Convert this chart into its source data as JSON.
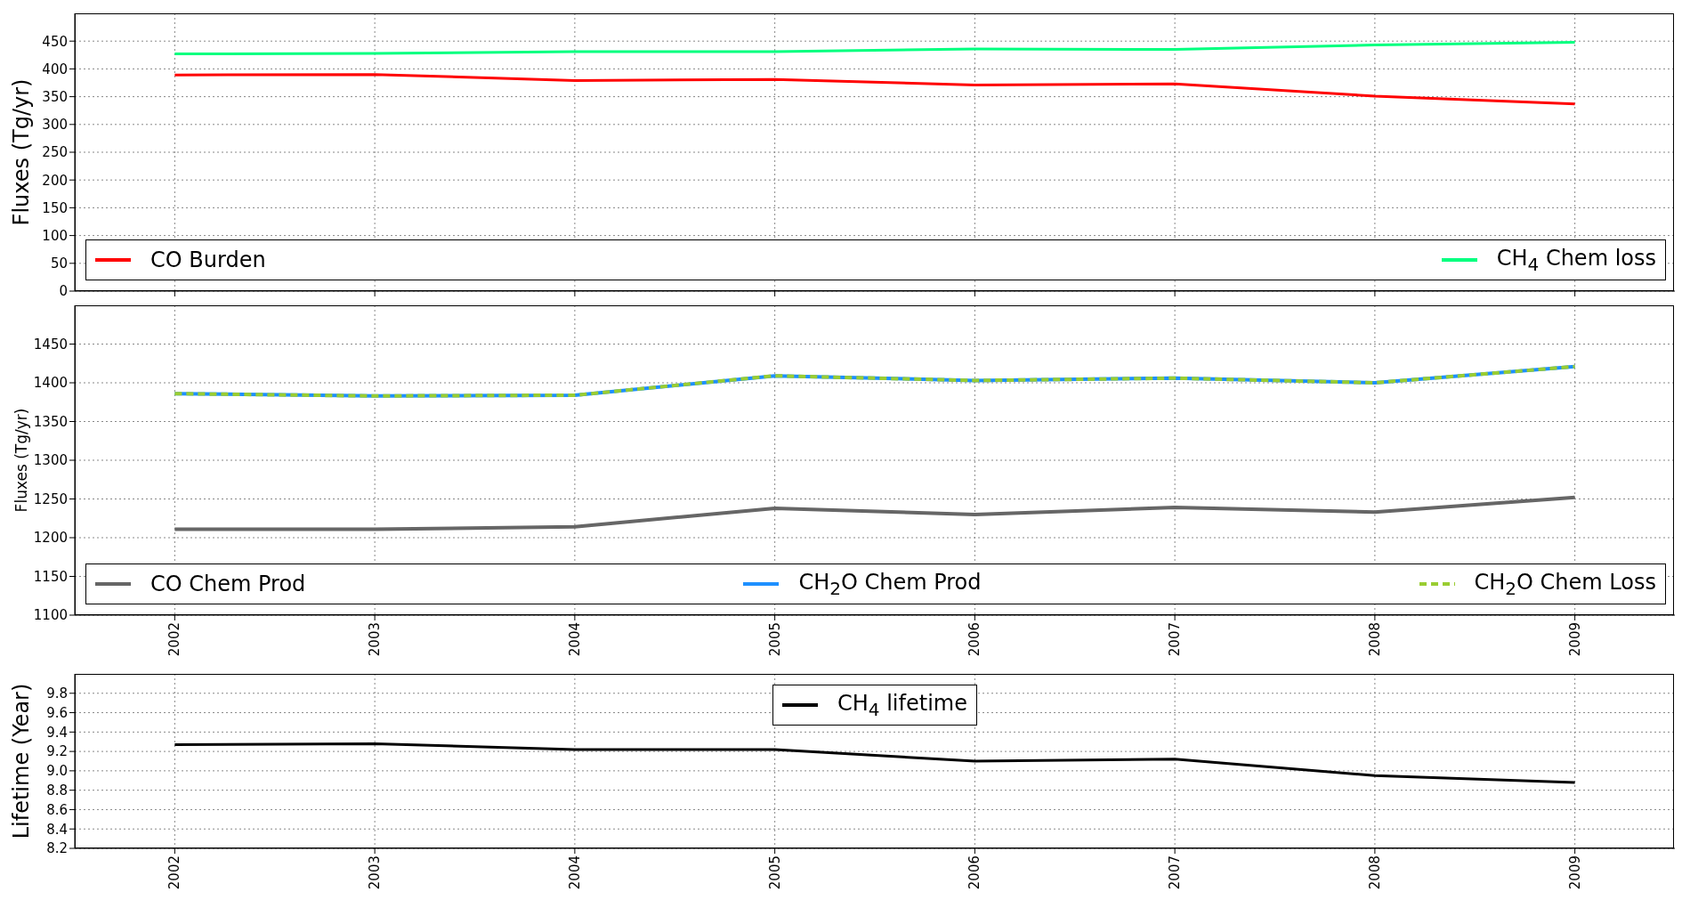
{
  "chart_data": [
    {
      "type": "line",
      "ylabel": "Fluxes (Tg/yr)",
      "x": [
        2002,
        2003,
        2004,
        2005,
        2006,
        2007,
        2008,
        2009
      ],
      "xlim": [
        2001.5,
        2009.5
      ],
      "xticks": [
        2002,
        2003,
        2004,
        2005,
        2006,
        2007,
        2008,
        2009
      ],
      "ylim": [
        0,
        500
      ],
      "yticks": [
        0,
        50,
        100,
        150,
        200,
        250,
        300,
        350,
        400,
        450
      ],
      "grid": true,
      "legend": "bottom",
      "tick_labels": "y",
      "marker": "none",
      "series": [
        {
          "name": "CO Burden",
          "color": "#ff0000",
          "values": [
            389,
            390,
            379,
            381,
            371,
            373,
            351,
            337
          ]
        },
        {
          "name": "CH$_{4}$ Chem loss",
          "color": "#00ff7f",
          "values": [
            427,
            428,
            431,
            431,
            436,
            435,
            443,
            448
          ]
        }
      ]
    },
    {
      "type": "line",
      "ylabel": "Fluxes (Tg/yr)",
      "x": [
        2002,
        2003,
        2004,
        2005,
        2006,
        2007,
        2008,
        2009
      ],
      "xlim": [
        2001.5,
        2009.5
      ],
      "xticks": [
        2002,
        2003,
        2004,
        2005,
        2006,
        2007,
        2008,
        2009
      ],
      "ylim": [
        1100,
        1500
      ],
      "yticks": [
        1100,
        1150,
        1200,
        1250,
        1300,
        1350,
        1400,
        1450
      ],
      "grid": true,
      "legend": "bottom",
      "marker": "none",
      "series": [
        {
          "name": "CO Chem Prod",
          "color": "#666666",
          "values": [
            1211,
            1211,
            1214,
            1238,
            1230,
            1239,
            1233,
            1252
          ]
        },
        {
          "name": "CH$_{2}$O Chem Prod",
          "color": "#1e90ff",
          "values": [
            1386,
            1383,
            1384,
            1409,
            1403,
            1406,
            1400,
            1421
          ]
        },
        {
          "name": "CH$_{2}$O Chem Loss",
          "color": "#9acd32",
          "line_style": "dashed",
          "values": [
            1386,
            1383,
            1384,
            1409,
            1403,
            1406,
            1400,
            1421
          ]
        }
      ]
    },
    {
      "type": "line",
      "ylabel": "Lifetime (Year)",
      "x": [
        2002,
        2003,
        2004,
        2005,
        2006,
        2007,
        2008,
        2009
      ],
      "xlim": [
        2001.5,
        2009.5
      ],
      "xticks": [
        2002,
        2003,
        2004,
        2005,
        2006,
        2007,
        2008,
        2009
      ],
      "ylim": [
        8.2,
        10.0
      ],
      "yticks": [
        8.2,
        8.4,
        8.6,
        8.8,
        {
          "value": 9.0,
          "label": "9.0"
        },
        9.2,
        9.4,
        9.6,
        9.8
      ],
      "grid": true,
      "legend": "top",
      "marker": "none",
      "series": [
        {
          "name": "CH$_{4}$ lifetime",
          "color": "#000000",
          "values": [
            9.27,
            9.28,
            9.22,
            9.22,
            9.1,
            9.12,
            8.95,
            8.88
          ]
        }
      ]
    }
  ]
}
